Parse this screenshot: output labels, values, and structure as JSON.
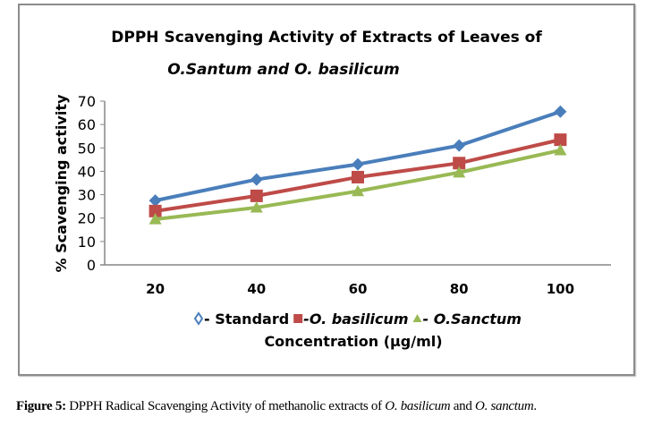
{
  "chart_data": {
    "type": "line",
    "title": "DPPH Scavenging Activity of  Extracts of  Leaves of",
    "subtitle": "O.Santum and O. basilicum",
    "xlabel": "Concentration (µg/ml)",
    "ylabel": "% Scavenging activity",
    "categories": [
      "20",
      "40",
      "60",
      "80",
      "100"
    ],
    "ylim": [
      0,
      70
    ],
    "yticks": [
      "0",
      "10",
      "20",
      "30",
      "40",
      "50",
      "60",
      "70"
    ],
    "legend_placement": "bottom",
    "series": [
      {
        "name": "- Standard",
        "marker": "diamond",
        "color": "#4a7ebb",
        "values": [
          27.5,
          36.5,
          43,
          51,
          65.5
        ]
      },
      {
        "name": "-O. basilicum",
        "marker": "square",
        "color": "#be4b48",
        "values": [
          23,
          29.5,
          37.5,
          43.5,
          53.5
        ]
      },
      {
        "name": "- O.Sanctum",
        "marker": "triangle",
        "color": "#98b954",
        "values": [
          19.5,
          24.5,
          31.5,
          39.5,
          49
        ]
      }
    ]
  },
  "caption": {
    "label": "Figure 5:",
    "text1": " DPPH Radical Scavenging Activity of methanolic extracts of ",
    "sp1": "O. basilicum",
    "text2": " and ",
    "sp2": "O. sanctum",
    "end": "."
  }
}
